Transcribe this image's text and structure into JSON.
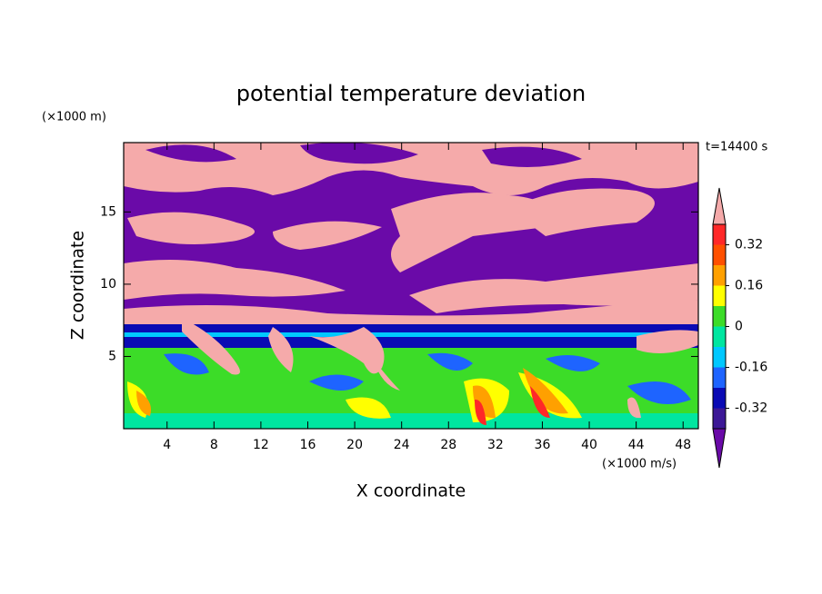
{
  "chart_data": {
    "type": "contourf",
    "title": "potential temperature deviation",
    "y_unit_label": "(×1000 m)",
    "x_unit_label": "(×1000 m/s)",
    "time_label": "t=14400 s",
    "xlabel": "X coordinate",
    "ylabel": "Z coordinate",
    "xlim": [
      0.3,
      49.3
    ],
    "ylim": [
      0,
      19.8
    ],
    "xticks": [
      4,
      8,
      12,
      16,
      20,
      24,
      28,
      32,
      36,
      40,
      44,
      48
    ],
    "yticks": [
      5,
      10,
      15
    ],
    "levels": [
      -0.4,
      -0.32,
      -0.24,
      -0.16,
      -0.08,
      0,
      0.08,
      0.16,
      0.24,
      0.32,
      0.4
    ],
    "colors": [
      "#6a0aa8",
      "#3c1896",
      "#0a0ab4",
      "#1e64ff",
      "#00c8ff",
      "#00e6a0",
      "#3cdc28",
      "#ffff00",
      "#ffa000",
      "#ff5000",
      "#ff2828",
      "#f5aaaa"
    ],
    "colorbar_ticks": [
      -0.32,
      -0.16,
      0,
      0.16,
      0.32
    ]
  }
}
